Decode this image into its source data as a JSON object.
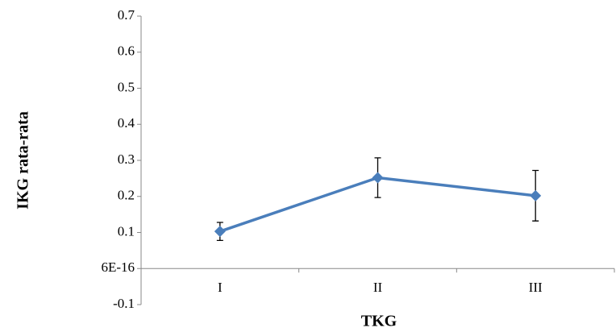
{
  "chart_data": {
    "type": "line",
    "x_label": "TKG",
    "y_label": "IKG rata-rata",
    "categories": [
      "I",
      "II",
      "III"
    ],
    "series": [
      {
        "name": "IKG rata-rata",
        "color": "#4a7ebb",
        "values": [
          0.103,
          0.252,
          0.202
        ],
        "errors": [
          0.025,
          0.055,
          0.07
        ]
      }
    ],
    "ylim": [
      -0.1,
      0.7
    ],
    "yticks": [
      -0.1,
      {
        "value": 6e-16,
        "label": "6E-16"
      },
      0.1,
      0.2,
      0.3,
      0.4,
      0.5,
      0.6,
      0.7
    ],
    "grid": false
  }
}
